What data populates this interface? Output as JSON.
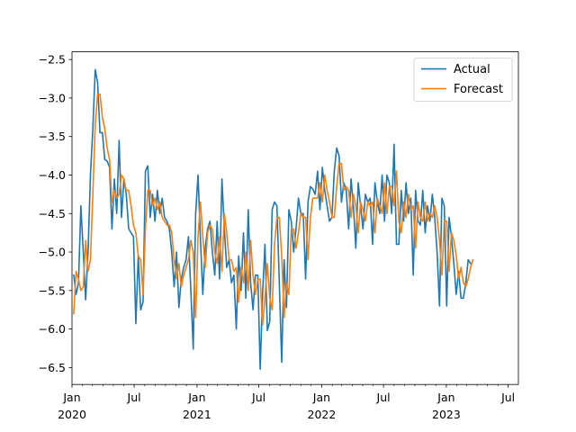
{
  "chart_data": {
    "type": "line",
    "title": "",
    "xlabel": "",
    "ylabel": "",
    "x_start": "2020-01-06",
    "x_step_days": 7,
    "xlim": [
      "2020-01-01",
      "2023-07-31"
    ],
    "ylim": [
      -6.72,
      -2.4
    ],
    "y_ticks": [
      -6.5,
      -6.0,
      -5.5,
      -5.0,
      -4.5,
      -4.0,
      -3.5,
      -3.0,
      -2.5
    ],
    "y_tick_labels": [
      "−6.5",
      "−6.0",
      "−5.5",
      "−5.0",
      "−4.5",
      "−4.0",
      "−3.5",
      "−3.0",
      "−2.5"
    ],
    "x_major_ticks": [
      {
        "date": "2020-01-01",
        "label": "Jan",
        "sublabel": "2020"
      },
      {
        "date": "2020-07-01",
        "label": "Jul",
        "sublabel": ""
      },
      {
        "date": "2021-01-01",
        "label": "Jan",
        "sublabel": "2021"
      },
      {
        "date": "2021-07-01",
        "label": "Jul",
        "sublabel": ""
      },
      {
        "date": "2022-01-01",
        "label": "Jan",
        "sublabel": "2022"
      },
      {
        "date": "2022-07-01",
        "label": "Jul",
        "sublabel": ""
      },
      {
        "date": "2023-01-01",
        "label": "Jan",
        "sublabel": "2023"
      },
      {
        "date": "2023-07-01",
        "label": "Jul",
        "sublabel": ""
      }
    ],
    "grid": false,
    "legend": {
      "placement": "top-right"
    },
    "series": [
      {
        "name": "Actual",
        "color": "#1f77b4",
        "values": [
          -5.3,
          -5.55,
          -5.4,
          -4.4,
          -5.0,
          -5.62,
          -5.0,
          -4.0,
          -3.4,
          -2.63,
          -2.8,
          -3.45,
          -3.45,
          -3.8,
          -3.82,
          -3.9,
          -4.7,
          -4.05,
          -4.5,
          -3.55,
          -4.55,
          -4.05,
          -4.25,
          -4.7,
          -4.75,
          -4.8,
          -5.93,
          -5.05,
          -5.75,
          -5.65,
          -3.95,
          -3.88,
          -4.55,
          -4.25,
          -4.6,
          -4.2,
          -4.5,
          -4.3,
          -4.55,
          -4.6,
          -4.7,
          -5.0,
          -5.45,
          -5.0,
          -5.72,
          -5.35,
          -5.2,
          -5.1,
          -4.8,
          -5.5,
          -6.26,
          -4.5,
          -4.0,
          -4.82,
          -5.55,
          -4.95,
          -4.7,
          -4.6,
          -5.0,
          -5.3,
          -4.6,
          -5.35,
          -4.05,
          -4.7,
          -5.2,
          -5.1,
          -5.4,
          -5.3,
          -6.0,
          -5.05,
          -5.5,
          -4.75,
          -5.6,
          -4.45,
          -5.4,
          -5.75,
          -5.3,
          -5.3,
          -6.52,
          -5.55,
          -4.9,
          -6.02,
          -5.9,
          -4.45,
          -4.35,
          -4.4,
          -5.4,
          -6.43,
          -5.1,
          -5.72,
          -4.45,
          -4.6,
          -5.0,
          -4.7,
          -4.3,
          -4.5,
          -4.5,
          -5.35,
          -4.35,
          -4.15,
          -4.18,
          -4.25,
          -3.95,
          -4.45,
          -3.9,
          -4.2,
          -4.4,
          -4.6,
          -4.55,
          -3.95,
          -3.65,
          -3.75,
          -4.35,
          -4.1,
          -4.2,
          -4.7,
          -4.05,
          -4.4,
          -4.95,
          -4.1,
          -4.4,
          -4.7,
          -4.25,
          -4.35,
          -4.3,
          -4.9,
          -4.1,
          -4.35,
          -4.5,
          -4.0,
          -4.6,
          -4.0,
          -4.1,
          -4.5,
          -3.6,
          -4.9,
          -4.9,
          -4.2,
          -4.6,
          -4.1,
          -4.5,
          -4.3,
          -5.3,
          -4.2,
          -4.6,
          -4.65,
          -4.2,
          -4.75,
          -4.4,
          -4.6,
          -4.25,
          -4.55,
          -5.0,
          -5.7,
          -4.3,
          -4.4,
          -5.7,
          -4.55,
          -4.8,
          -5.15,
          -5.55,
          -5.25,
          -5.6,
          -5.6,
          -5.4,
          -5.1,
          -5.15
        ]
      },
      {
        "name": "Forecast",
        "color": "#ff7f0e",
        "values": [
          -5.8,
          -5.25,
          -5.35,
          -5.5,
          -5.45,
          -4.85,
          -5.25,
          -5.1,
          -4.25,
          -3.35,
          -2.95,
          -2.95,
          -3.25,
          -3.4,
          -3.65,
          -3.8,
          -4.35,
          -4.2,
          -4.3,
          -4.25,
          -4.0,
          -4.05,
          -4.2,
          -4.2,
          -4.4,
          -4.65,
          -4.75,
          -5.05,
          -5.1,
          -5.55,
          -4.7,
          -4.2,
          -4.2,
          -4.4,
          -4.3,
          -4.45,
          -4.35,
          -4.55,
          -4.6,
          -4.65,
          -4.65,
          -4.75,
          -5.1,
          -5.35,
          -5.15,
          -5.45,
          -5.3,
          -5.2,
          -5.1,
          -4.85,
          -5.0,
          -5.85,
          -4.8,
          -4.35,
          -4.8,
          -5.2,
          -4.75,
          -4.65,
          -4.7,
          -5.0,
          -5.15,
          -4.8,
          -5.25,
          -4.5,
          -4.75,
          -5.1,
          -5.1,
          -5.25,
          -5.2,
          -5.65,
          -5.2,
          -5.4,
          -5.0,
          -5.5,
          -4.85,
          -5.3,
          -5.55,
          -5.35,
          -5.35,
          -5.95,
          -5.6,
          -5.15,
          -5.6,
          -5.75,
          -4.9,
          -4.55,
          -4.55,
          -5.05,
          -5.85,
          -5.4,
          -5.55,
          -4.7,
          -4.7,
          -4.95,
          -4.75,
          -4.5,
          -4.55,
          -4.55,
          -5.1,
          -4.55,
          -4.3,
          -4.3,
          -4.3,
          -4.1,
          -4.35,
          -4.0,
          -4.2,
          -4.35,
          -4.55,
          -4.55,
          -4.15,
          -3.85,
          -3.85,
          -4.2,
          -4.15,
          -4.2,
          -4.55,
          -4.25,
          -4.4,
          -4.75,
          -4.35,
          -4.45,
          -4.6,
          -4.35,
          -4.4,
          -4.35,
          -4.75,
          -4.3,
          -4.4,
          -4.5,
          -4.1,
          -4.5,
          -4.15,
          -4.15,
          -4.4,
          -3.95,
          -4.6,
          -4.75,
          -4.35,
          -4.55,
          -4.25,
          -4.45,
          -4.4,
          -4.95,
          -4.35,
          -4.55,
          -4.6,
          -4.35,
          -4.6,
          -4.5,
          -4.55,
          -4.4,
          -4.55,
          -4.85,
          -5.3,
          -4.6,
          -4.6,
          -5.25,
          -4.75,
          -4.85,
          -5.05,
          -5.35,
          -5.2,
          -5.4,
          -5.45,
          -5.35,
          -5.2,
          -5.1
        ]
      }
    ]
  }
}
